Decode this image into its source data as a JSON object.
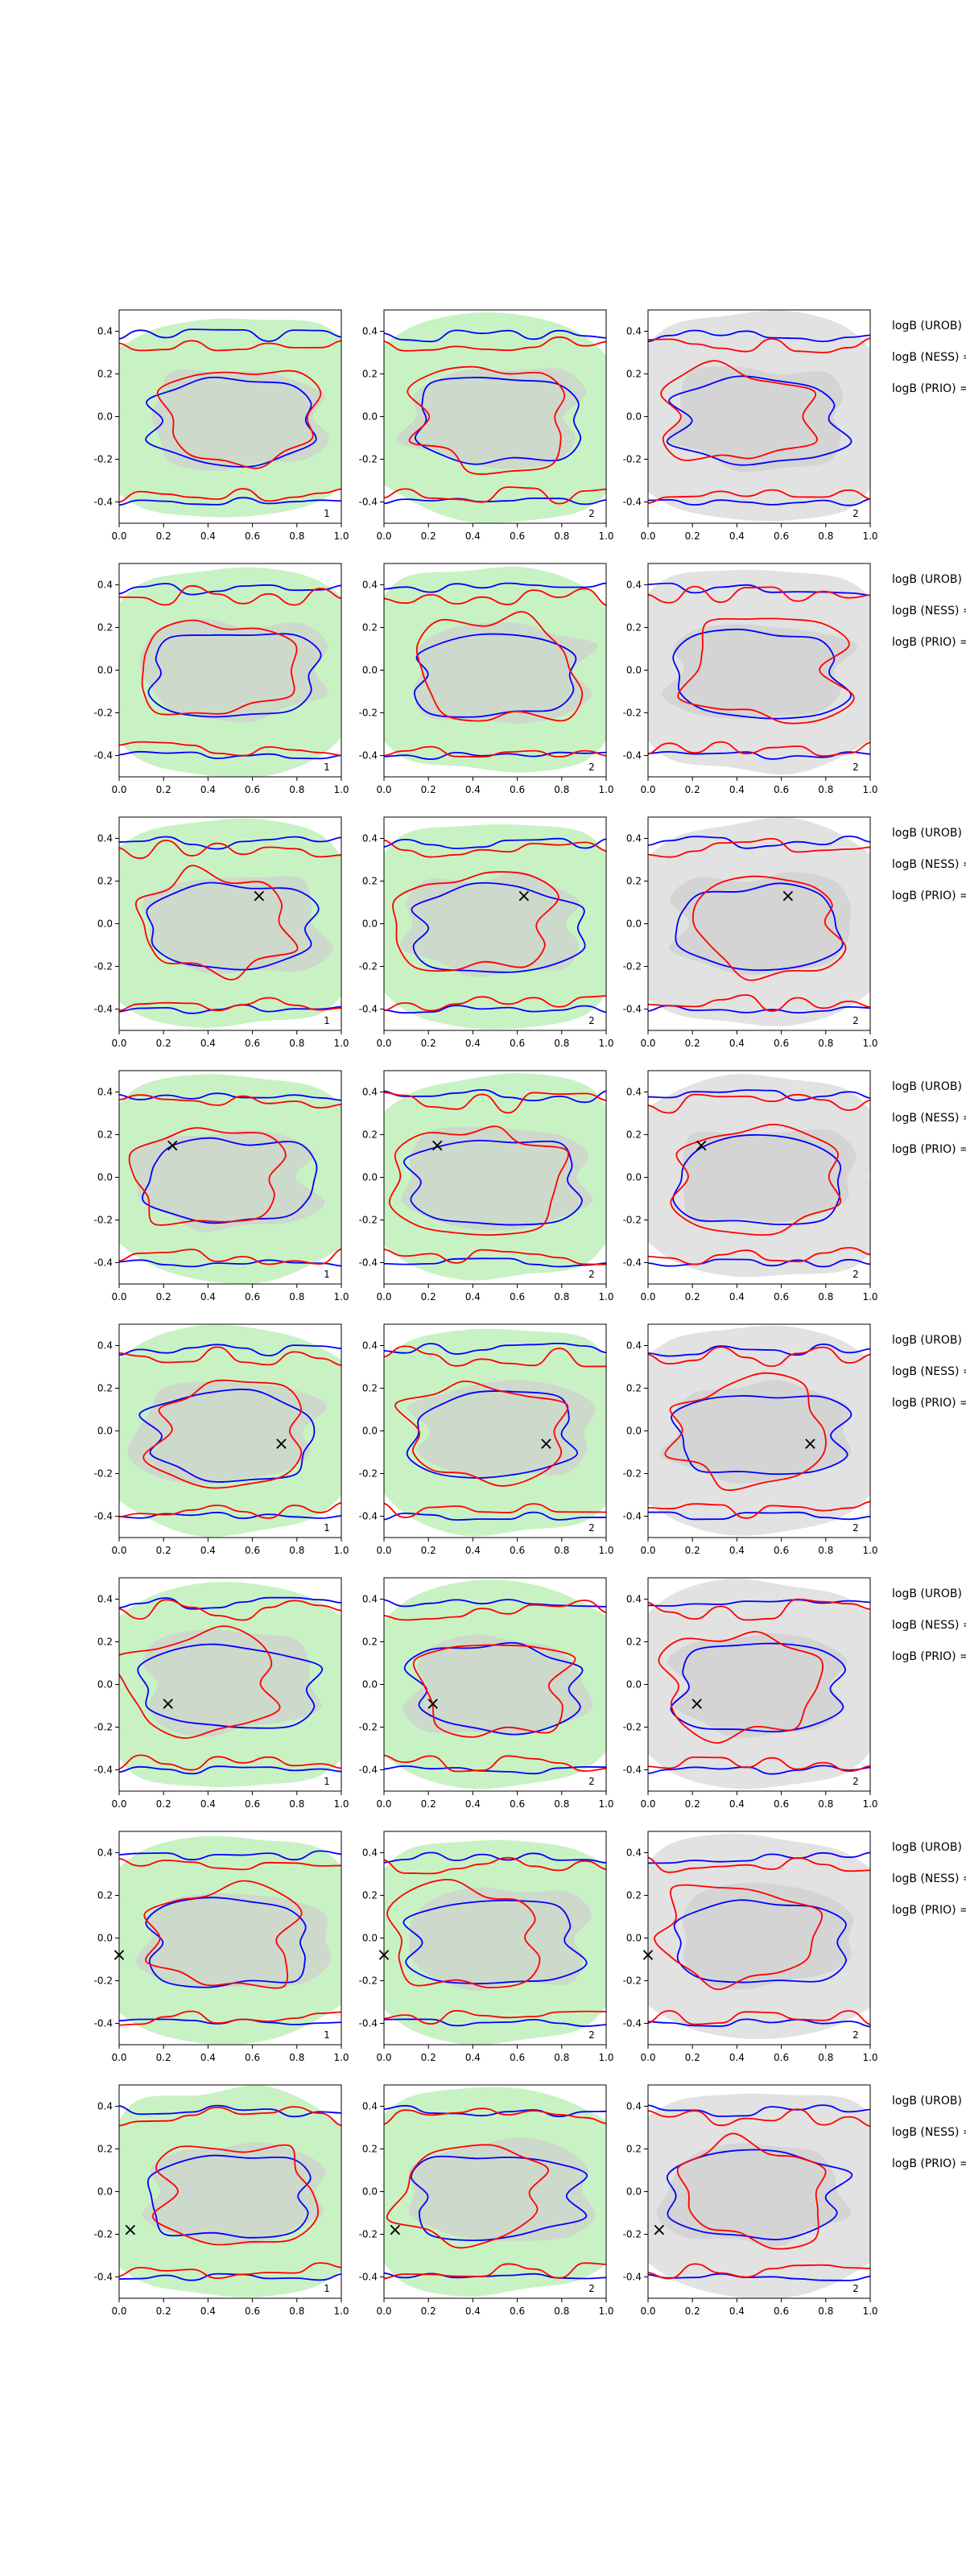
{
  "figure": {
    "rows": 8,
    "columns": 3,
    "x_range": [
      0.0,
      1.0
    ],
    "y_range": [
      -0.5,
      0.5
    ],
    "x_ticks": [
      "0.0",
      "0.2",
      "0.4",
      "0.6",
      "0.8",
      "1.0"
    ],
    "y_ticks": [
      "0.4",
      "0.2",
      "0.0",
      "-0.2",
      "-0.4"
    ],
    "panel_corner_labels": [
      "1",
      "2",
      "2"
    ],
    "row_labels": [
      "logB (UROB) =",
      "logB (NESS) =",
      "logB (PRIO) ="
    ],
    "colors": {
      "blue_contour": "#0000ff",
      "red_contour": "#ff0000",
      "green_fill": "#c9f2c4",
      "grey_fill": "#e2e2e2",
      "dark_fill": "#cfcfcf"
    }
  },
  "chart_data": {
    "type": "contour",
    "panel_background_by_column": [
      "green",
      "green",
      "grey"
    ],
    "markers": [
      {
        "row": 1,
        "x": null,
        "y": null
      },
      {
        "row": 2,
        "x": null,
        "y": null
      },
      {
        "row": 3,
        "x": 0.63,
        "y": 0.13
      },
      {
        "row": 4,
        "x": 0.24,
        "y": 0.15
      },
      {
        "row": 5,
        "x": 0.73,
        "y": -0.06
      },
      {
        "row": 6,
        "x": 0.22,
        "y": -0.09
      },
      {
        "row": 7,
        "x": 0.0,
        "y": -0.08
      },
      {
        "row": 8,
        "x": 0.05,
        "y": -0.18
      }
    ],
    "marker_symbol": "×"
  }
}
